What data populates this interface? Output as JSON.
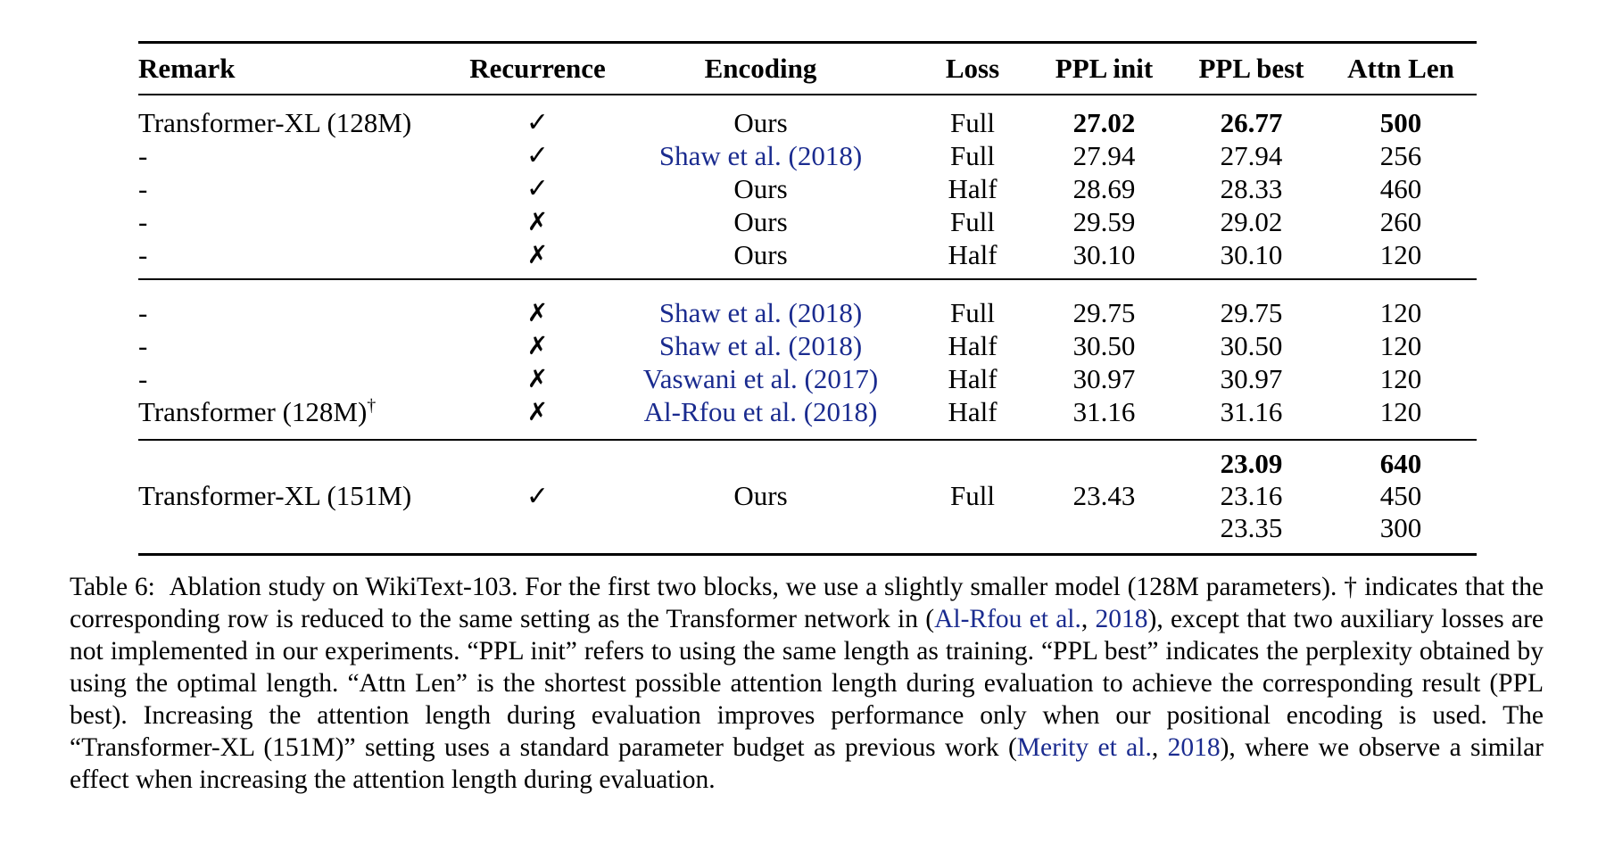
{
  "table": {
    "headers": {
      "remark": "Remark",
      "recurrence": "Recurrence",
      "encoding": "Encoding",
      "loss": "Loss",
      "ppl_init": "PPL init",
      "ppl_best": "PPL best",
      "attn_len": "Attn Len"
    },
    "block1": [
      {
        "remark": "Transformer-XL (128M)",
        "recurrence": "✓",
        "encoding": "Ours",
        "loss": "Full",
        "ppl_init": "27.02",
        "ppl_best": "26.77",
        "attn_len": "500"
      },
      {
        "remark": "-",
        "recurrence": "✓",
        "encoding": "Shaw et al. (2018)",
        "loss": "Full",
        "ppl_init": "27.94",
        "ppl_best": "27.94",
        "attn_len": "256"
      },
      {
        "remark": "-",
        "recurrence": "✓",
        "encoding": "Ours",
        "loss": "Half",
        "ppl_init": "28.69",
        "ppl_best": "28.33",
        "attn_len": "460"
      },
      {
        "remark": "-",
        "recurrence": "✗",
        "encoding": "Ours",
        "loss": "Full",
        "ppl_init": "29.59",
        "ppl_best": "29.02",
        "attn_len": "260"
      },
      {
        "remark": "-",
        "recurrence": "✗",
        "encoding": "Ours",
        "loss": "Half",
        "ppl_init": "30.10",
        "ppl_best": "30.10",
        "attn_len": "120"
      }
    ],
    "block2": [
      {
        "remark": "-",
        "recurrence": "✗",
        "encoding": "Shaw et al. (2018)",
        "loss": "Full",
        "ppl_init": "29.75",
        "ppl_best": "29.75",
        "attn_len": "120"
      },
      {
        "remark": "-",
        "recurrence": "✗",
        "encoding": "Shaw et al. (2018)",
        "loss": "Half",
        "ppl_init": "30.50",
        "ppl_best": "30.50",
        "attn_len": "120"
      },
      {
        "remark": "-",
        "recurrence": "✗",
        "encoding": "Vaswani et al. (2017)",
        "loss": "Half",
        "ppl_init": "30.97",
        "ppl_best": "30.97",
        "attn_len": "120"
      },
      {
        "remark": "Transformer (128M)",
        "remark_mark": "†",
        "recurrence": "✗",
        "encoding": "Al-Rfou et al. (2018)",
        "loss": "Half",
        "ppl_init": "31.16",
        "ppl_best": "31.16",
        "attn_len": "120"
      }
    ],
    "block3": {
      "remark": "Transformer-XL (151M)",
      "recurrence": "✓",
      "encoding": "Ours",
      "loss": "Full",
      "ppl_init": "23.43",
      "ppl_best": [
        "23.09",
        "23.16",
        "23.35"
      ],
      "attn_len": [
        "640",
        "450",
        "300"
      ]
    }
  },
  "caption": {
    "label": "Table 6:",
    "s1": "Ablation study on WikiText-103. For the first two blocks, we use a slightly smaller model (128M parameters).",
    "s2a": "† indicates that the corresponding row is reduced to the same setting as the Transformer network in (",
    "cite1_name": "Al-Rfou et al.",
    "cite1_sep": ", ",
    "cite1_year": "2018",
    "s2b": "), except that two auxiliary losses are not implemented in our experiments. “PPL init” refers to using the same length as training. “PPL best” indicates the perplexity obtained by using the optimal length. “Attn Len” is the shortest possible attention length during evaluation to achieve the corresponding result (PPL best). Increasing the attention length during evaluation improves performance only when our positional encoding is used. The “Transformer-XL (151M)” setting uses a standard parameter budget as previous work (",
    "cite2_name": "Merity et al.",
    "cite2_sep": ", ",
    "cite2_year": "2018",
    "s3": "), where we observe a similar effect when increasing the attention length during evaluation."
  }
}
